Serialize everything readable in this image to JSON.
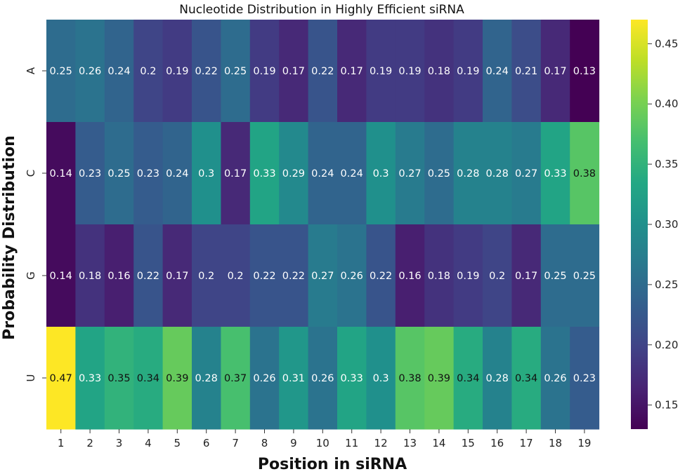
{
  "chart_data": {
    "type": "heatmap",
    "title": "Nucleotide Distribution in Highly Efficient siRNA",
    "xlabel": "Position in siRNA",
    "ylabel": "Probability Distribution",
    "x": [
      "1",
      "2",
      "3",
      "4",
      "5",
      "6",
      "7",
      "8",
      "9",
      "10",
      "11",
      "12",
      "13",
      "14",
      "15",
      "16",
      "17",
      "18",
      "19"
    ],
    "y": [
      "A",
      "C",
      "G",
      "U"
    ],
    "values": [
      [
        0.25,
        0.26,
        0.24,
        0.2,
        0.19,
        0.22,
        0.25,
        0.19,
        0.17,
        0.22,
        0.17,
        0.19,
        0.19,
        0.18,
        0.19,
        0.24,
        0.21,
        0.17,
        0.13
      ],
      [
        0.14,
        0.23,
        0.25,
        0.23,
        0.24,
        0.3,
        0.17,
        0.33,
        0.29,
        0.24,
        0.24,
        0.3,
        0.27,
        0.25,
        0.28,
        0.28,
        0.27,
        0.33,
        0.38
      ],
      [
        0.14,
        0.18,
        0.16,
        0.22,
        0.17,
        0.2,
        0.2,
        0.22,
        0.22,
        0.27,
        0.26,
        0.22,
        0.16,
        0.18,
        0.19,
        0.2,
        0.17,
        0.25,
        0.25
      ],
      [
        0.47,
        0.33,
        0.35,
        0.34,
        0.39,
        0.28,
        0.37,
        0.26,
        0.31,
        0.26,
        0.33,
        0.3,
        0.38,
        0.39,
        0.34,
        0.28,
        0.34,
        0.26,
        0.23
      ]
    ],
    "colormap": "viridis",
    "vmin": 0.13,
    "vmax": 0.47,
    "colorbar_ticks": [
      "0.15",
      "0.20",
      "0.25",
      "0.30",
      "0.35",
      "0.40",
      "0.45"
    ]
  }
}
